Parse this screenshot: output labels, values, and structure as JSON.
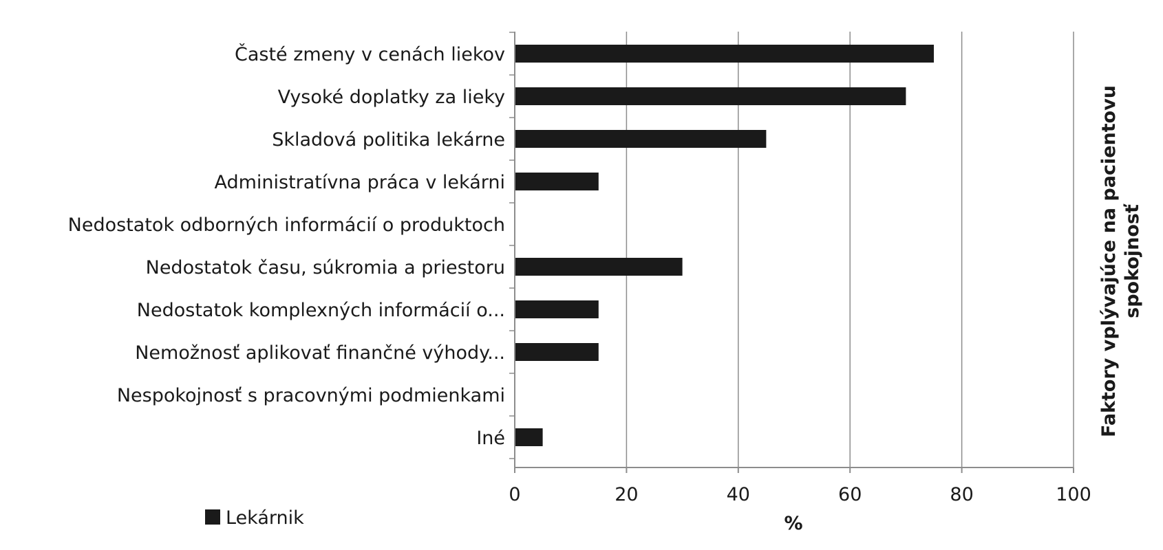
{
  "chart_data": {
    "type": "bar",
    "orientation": "horizontal",
    "categories": [
      "Časté zmeny v cenách liekov",
      "Vysoké doplatky za lieky",
      "Skladová politika lekárne",
      "Administratívna práca v lekárni",
      "Nedostatok odborných informácií o produktoch",
      "Nedostatok času, súkromia a priestoru",
      "Nedostatok komplexných informácií o...",
      "Nemožnosť aplikovať finančné výhody...",
      "Nespokojnosť s pracovnými podmienkami",
      "Iné"
    ],
    "series": [
      {
        "name": "Lekárnik",
        "values": [
          75,
          70,
          45,
          15,
          0,
          30,
          15,
          15,
          0,
          5
        ]
      }
    ],
    "xlabel": "%",
    "ylabel": "Faktory vplývajúce na pacientovu spokojnosť",
    "ylabel_lines": [
      "Faktory vplývajúce na pacientovu",
      "spokojnosť"
    ],
    "xlim": [
      0,
      100
    ],
    "xticks": [
      0,
      20,
      40,
      60,
      80,
      100
    ],
    "grid": true,
    "legend_position": "bottom-left",
    "bar_color": "#1a1a1a",
    "grid_color": "#8c8c8c",
    "text_color": "#1a1a1a"
  }
}
